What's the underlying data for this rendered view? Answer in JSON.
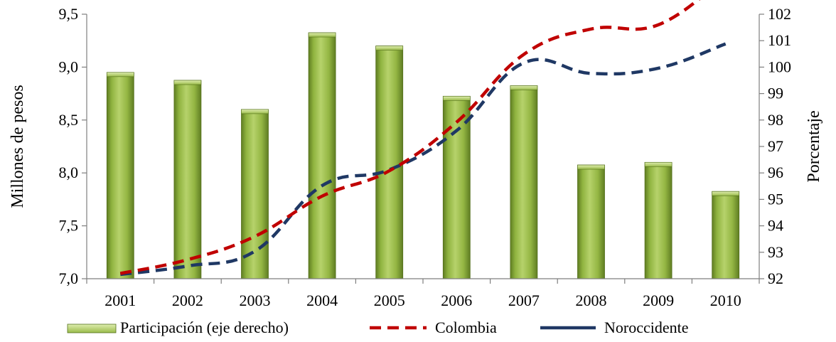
{
  "chart_data": {
    "type": "bar",
    "categories": [
      "2001",
      "2002",
      "2003",
      "2004",
      "2005",
      "2006",
      "2007",
      "2008",
      "2009",
      "2010"
    ],
    "left_axis": {
      "label": "Millones de pesos",
      "ylim": [
        7.0,
        9.5
      ],
      "ticks": [
        "7,0",
        "7,5",
        "8,0",
        "8,5",
        "9,0",
        "9,5"
      ],
      "tick_values": [
        7.0,
        7.5,
        8.0,
        8.5,
        9.0,
        9.5
      ]
    },
    "right_axis": {
      "label": "Porcentaje",
      "ylim": [
        92,
        102
      ],
      "ticks": [
        "92",
        "93",
        "94",
        "95",
        "96",
        "97",
        "98",
        "99",
        "100",
        "101",
        "102"
      ],
      "tick_values": [
        92,
        93,
        94,
        95,
        96,
        97,
        98,
        99,
        100,
        101,
        102
      ]
    },
    "series": [
      {
        "name": "Participación (eje derecho)",
        "kind": "bar",
        "axis": "right",
        "color": "#8aac3c",
        "values": [
          99.8,
          99.5,
          98.4,
          101.3,
          100.8,
          98.9,
          99.3,
          96.3,
          96.4,
          95.3
        ]
      },
      {
        "name": "Colombia",
        "kind": "line",
        "axis": "left",
        "style": "dashed",
        "color": "#c00000",
        "values": [
          7.05,
          7.18,
          7.4,
          7.78,
          8.02,
          8.48,
          9.12,
          9.36,
          9.4,
          9.85
        ]
      },
      {
        "name": "Noroccidente",
        "kind": "line",
        "axis": "left",
        "style": "dashed",
        "color": "#1f3864",
        "values": [
          7.04,
          7.12,
          7.26,
          7.88,
          8.03,
          8.4,
          9.04,
          8.94,
          8.99,
          9.22
        ]
      }
    ]
  }
}
